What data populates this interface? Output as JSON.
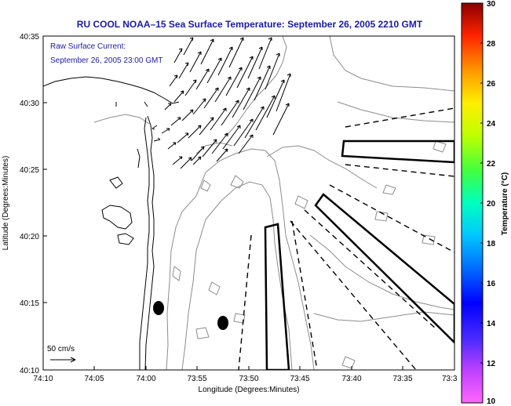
{
  "title": "RU COOL  NOAA–15  Sea Surface Temperature:  September 26, 2005 2210 GMT",
  "annotation": {
    "line1": "Raw Surface Current:",
    "line2": "September 26, 2005 23:00 GMT"
  },
  "scale_label": "50 cm/s",
  "axes": {
    "xlabel": "Longitude (Degrees:Minutes)",
    "ylabel": "Latitude (Degrees:Minutes)",
    "x_ticks": [
      "74:10",
      "74:05",
      "74:00",
      "73:55",
      "73:50",
      "73:45",
      "73:40",
      "73:35",
      "73:3"
    ],
    "y_ticks": [
      "40:35",
      "40:30",
      "40:25",
      "40:20",
      "40:15",
      "40:10"
    ]
  },
  "colorbar": {
    "label": "Temperature (°C)",
    "ticks": [
      "30",
      "28",
      "26",
      "24",
      "22",
      "20",
      "18",
      "16",
      "14",
      "12",
      "10"
    ],
    "range": [
      10,
      30
    ]
  },
  "colors": {
    "title": "#1a1aa8",
    "coast": "#000000",
    "contour": "#888888"
  }
}
